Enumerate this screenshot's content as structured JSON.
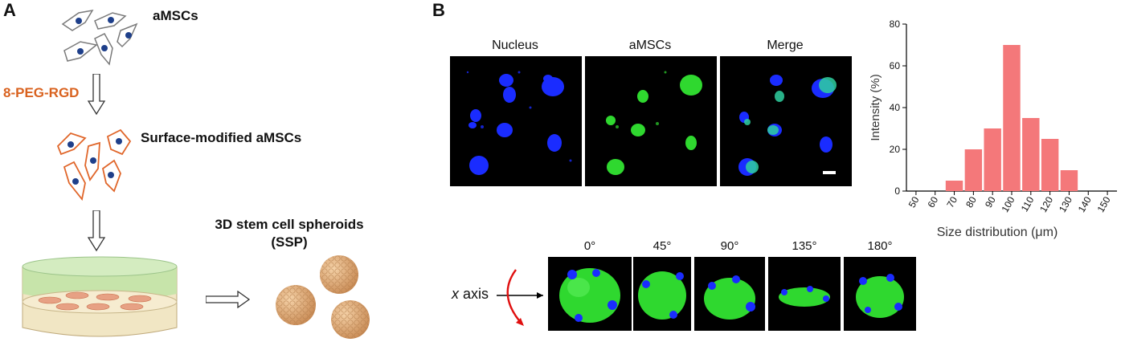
{
  "panel_a": {
    "letter": "A",
    "cells_label": "aMSCs",
    "reagent_label": "8-PEG-RGD",
    "modified_label": "Surface-modified aMSCs",
    "spheroid_label_line1": "3D stem cell spheroids",
    "spheroid_label_line2": "(SSP)",
    "colors": {
      "cell_outline": "#7a7a7a",
      "modified_outline": "#e0662a",
      "nucleus": "#1e3f8a"
    }
  },
  "panel_b": {
    "letter": "B",
    "micrograph_labels": [
      "Nucleus",
      "aMSCs",
      "Merge"
    ],
    "rotation_axis_label_italic": "x",
    "rotation_axis_label_rest": " axis",
    "angles": [
      "0°",
      "45°",
      "90°",
      "135°",
      "180°"
    ],
    "colors": {
      "nucleus": "#1a2cff",
      "cells": "#2fd82f",
      "arrow": "#e01010"
    }
  },
  "chart_data": {
    "type": "bar",
    "categories": [
      "50",
      "60",
      "70",
      "80",
      "90",
      "100",
      "110",
      "120",
      "130",
      "140",
      "150"
    ],
    "values": [
      0,
      0,
      5,
      20,
      30,
      70,
      35,
      25,
      10,
      0,
      0
    ],
    "ylabel": "Intensity  (%)",
    "xlabel": "Size distribution (μm)",
    "ylim": [
      0,
      80
    ],
    "yticks": [
      "0",
      "20",
      "40",
      "60",
      "80"
    ],
    "bar_color": "#f4787a",
    "grid": false
  }
}
